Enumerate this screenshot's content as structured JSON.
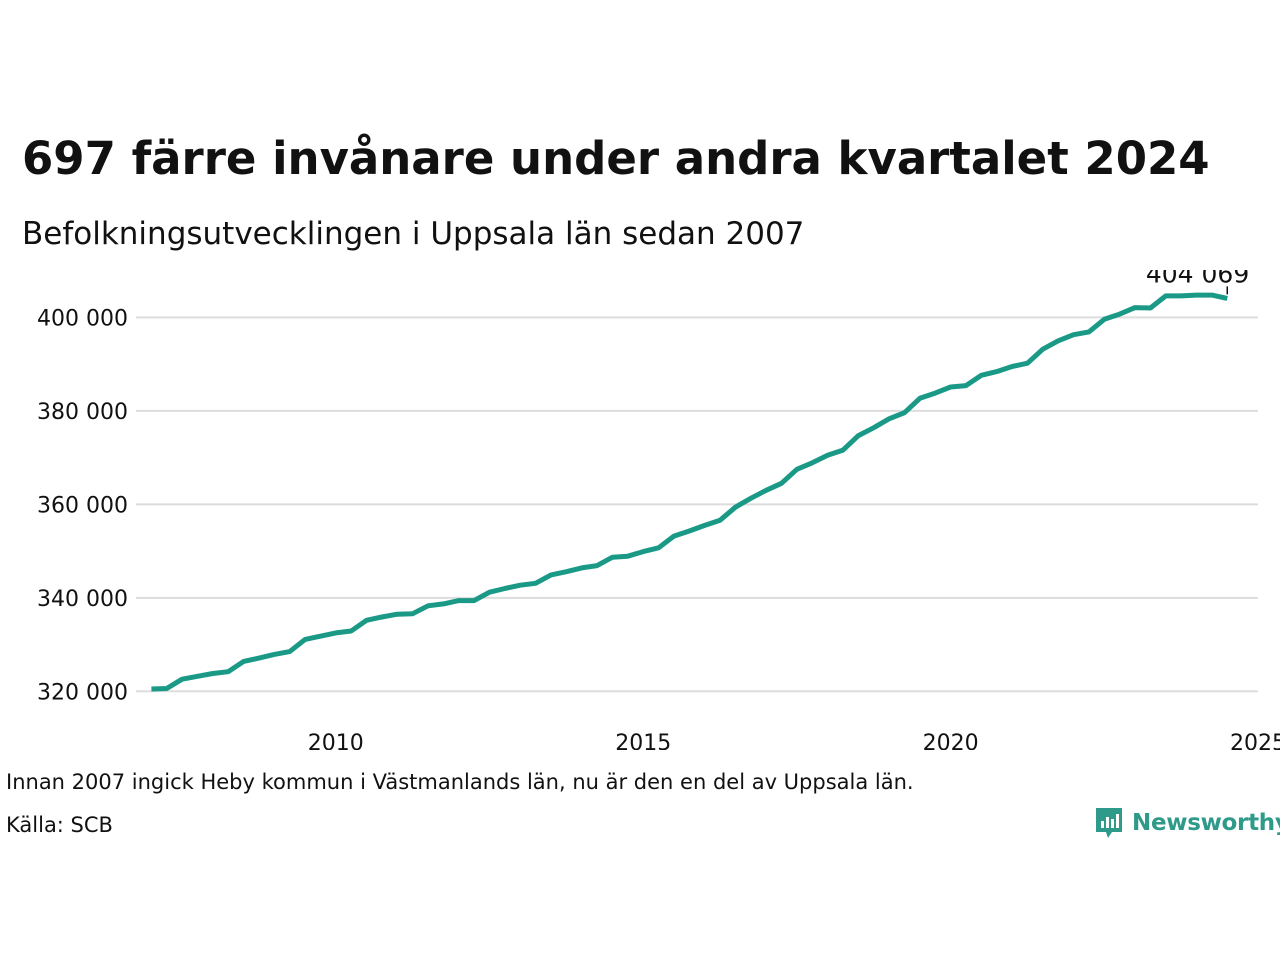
{
  "title": "697 färre invånare under andra kvartalet 2024",
  "subtitle": "Befolkningsutvecklingen i Uppsala län sedan 2007",
  "note": "Innan 2007 ingick Heby kommun i Västmanlands län, nu är den en del av Uppsala län.",
  "source": "Källa: SCB",
  "brand": {
    "name": "Newsworthy",
    "color": "#2e9a8a",
    "icon": "bar-chart-speech-bubble-icon"
  },
  "colors": {
    "line": "#1a9a86",
    "grid": "#dddddd",
    "text": "#111111"
  },
  "chart_data": {
    "type": "line",
    "title": "697 färre invånare under andra kvartalet 2024",
    "xlabel": "",
    "ylabel": "",
    "xlim": [
      2006.75,
      2025
    ],
    "ylim": [
      316000,
      408000
    ],
    "x_ticks": [
      2010,
      2015,
      2020,
      2025
    ],
    "x_tick_labels": [
      "2010",
      "2015",
      "2020",
      "2025"
    ],
    "y_ticks": [
      320000,
      340000,
      360000,
      380000,
      400000
    ],
    "y_tick_labels": [
      "320 000",
      "340 000",
      "360 000",
      "380 000",
      "400 000"
    ],
    "grid": "horizontal",
    "legend": "none",
    "annotation": {
      "x": 2024.5,
      "y": 404069,
      "label": "404 069"
    },
    "series": [
      {
        "x": [
          2007.0,
          2007.25,
          2007.5,
          2007.75,
          2008.0,
          2008.25,
          2008.5,
          2008.75,
          2009.0,
          2009.25,
          2009.5,
          2009.75,
          2010.0,
          2010.25,
          2010.5,
          2010.75,
          2011.0,
          2011.25,
          2011.5,
          2011.75,
          2012.0,
          2012.25,
          2012.5,
          2012.75,
          2013.0,
          2013.25,
          2013.5,
          2013.75,
          2014.0,
          2014.25,
          2014.5,
          2014.75,
          2015.0,
          2015.25,
          2015.5,
          2015.75,
          2016.0,
          2016.25,
          2016.5,
          2016.75,
          2017.0,
          2017.25,
          2017.5,
          2017.75,
          2018.0,
          2018.25,
          2018.5,
          2018.75,
          2019.0,
          2019.25,
          2019.5,
          2019.75,
          2020.0,
          2020.25,
          2020.5,
          2020.75,
          2021.0,
          2021.25,
          2021.5,
          2021.75,
          2022.0,
          2022.25,
          2022.5,
          2022.75,
          2023.0,
          2023.25,
          2023.5,
          2023.75,
          2024.0,
          2024.25,
          2024.5
        ],
        "values": [
          320500,
          320600,
          322600,
          323200,
          323800,
          324200,
          326400,
          327100,
          327900,
          328500,
          331100,
          331800,
          332500,
          332900,
          335200,
          335900,
          336500,
          336600,
          338300,
          338700,
          339400,
          339400,
          341200,
          342000,
          342700,
          343100,
          344900,
          345600,
          346400,
          346900,
          348700,
          348900,
          349900,
          350700,
          353200,
          354300,
          355500,
          356600,
          359400,
          361300,
          363000,
          364500,
          367500,
          368900,
          370500,
          371600,
          374700,
          376400,
          378300,
          379600,
          382700,
          383800,
          385100,
          385400,
          387600,
          388400,
          389500,
          390200,
          393200,
          395000,
          396300,
          396900,
          399600,
          400700,
          402100,
          402000,
          404600,
          404600,
          404766,
          404766,
          404069
        ]
      }
    ]
  }
}
